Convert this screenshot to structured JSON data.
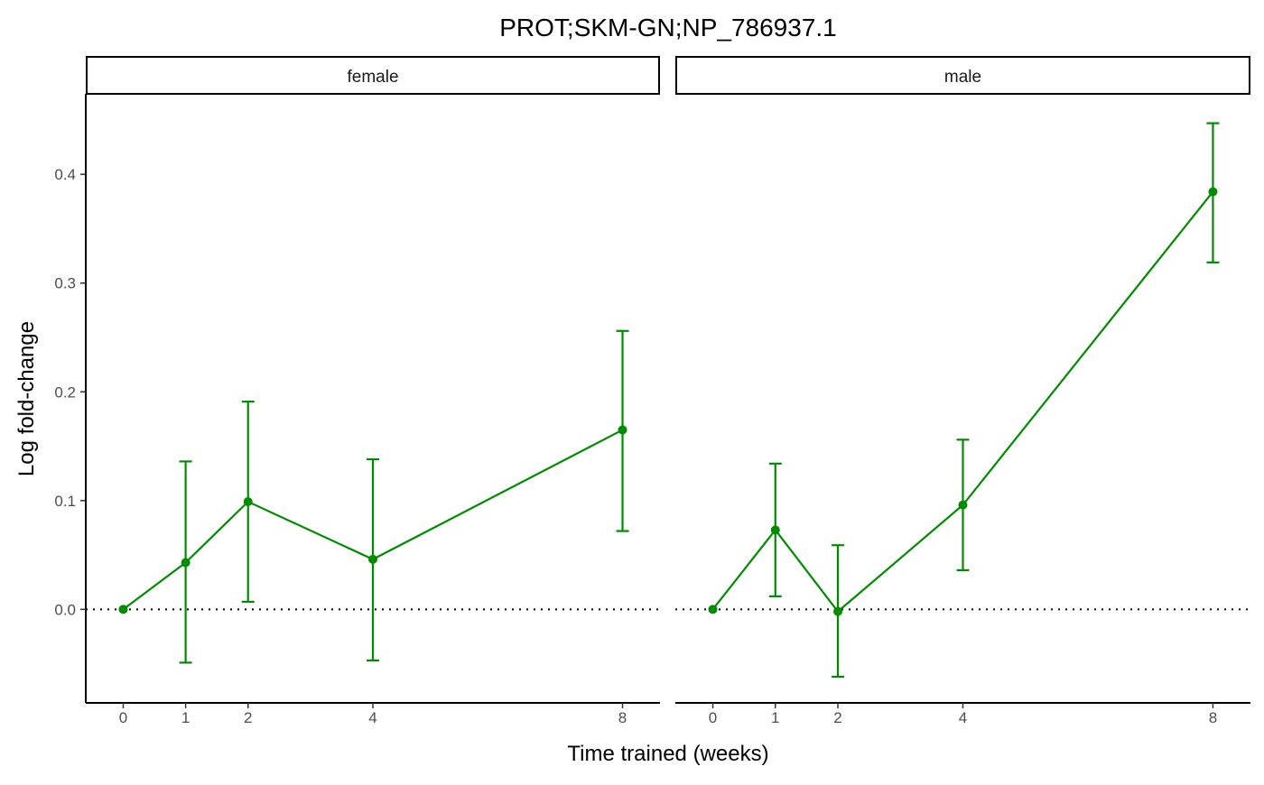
{
  "chart_data": {
    "type": "line",
    "title": "PROT;SKM-GN;NP_786937.1",
    "xlabel": "Time trained (weeks)",
    "ylabel": "Log fold-change",
    "ylim": [
      -0.086,
      0.474
    ],
    "xlim": [
      -0.6,
      8.6
    ],
    "yticks": [
      0.0,
      0.1,
      0.2,
      0.3,
      0.4
    ],
    "ytick_labels": [
      "0.0",
      "0.1",
      "0.2",
      "0.3",
      "0.4"
    ],
    "xticks": [
      0,
      1,
      2,
      4,
      8
    ],
    "xtick_labels": [
      "0",
      "1",
      "2",
      "4",
      "8"
    ],
    "reference_line": 0,
    "color": "#008B00",
    "panels": [
      {
        "name": "female",
        "x": [
          0,
          1,
          2,
          4,
          8
        ],
        "y": [
          0,
          0.043,
          0.099,
          0.046,
          0.165
        ],
        "lower": [
          null,
          -0.049,
          0.007,
          -0.047,
          0.072
        ],
        "upper": [
          null,
          0.136,
          0.191,
          0.138,
          0.256
        ]
      },
      {
        "name": "male",
        "x": [
          0,
          1,
          2,
          4,
          8
        ],
        "y": [
          0,
          0.073,
          -0.002,
          0.096,
          0.384
        ],
        "lower": [
          null,
          0.012,
          -0.062,
          0.036,
          0.319
        ],
        "upper": [
          null,
          0.134,
          0.059,
          0.156,
          0.447
        ]
      }
    ]
  }
}
